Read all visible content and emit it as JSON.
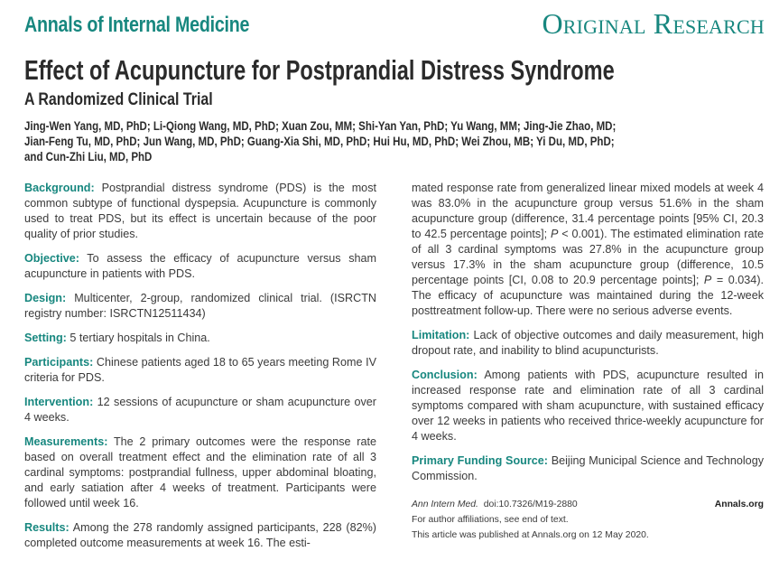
{
  "header": {
    "journal": "Annals of Internal Medicine",
    "section_type": "Original Research",
    "title": "Effect of Acupuncture for Postprandial Distress Syndrome",
    "subtitle": "A Randomized Clinical Trial",
    "authors_lines": [
      "Jing-Wen Yang, MD, PhD; Li-Qiong Wang, MD, PhD; Xuan Zou, MM; Shi-Yan Yan, PhD; Yu Wang, MM; Jing-Jie Zhao, MD;",
      "Jian-Feng Tu, MD, PhD; Jun Wang, MD, PhD; Guang-Xia Shi, MD, PhD; Hui Hu, MD, PhD; Wei Zhou, MB; Yi Du, MD, PhD;",
      "and Cun-Zhi Liu, MD, PhD"
    ]
  },
  "abstract": {
    "background": {
      "label": "Background:",
      "text": " Postprandial distress syndrome (PDS) is the most common subtype of functional dyspepsia. Acupuncture is com­monly used to treat PDS, but its effect is uncertain because of the poor quality of prior studies."
    },
    "objective": {
      "label": "Objective:",
      "text": " To assess the efficacy of acupuncture versus sham acupuncture in patients with PDS."
    },
    "design": {
      "label": "Design:",
      "text": " Multicenter, 2-group, randomized clinical trial. (ISRCTN registry number: ISRCTN12511434)"
    },
    "setting": {
      "label": "Setting:",
      "text": " 5 tertiary hospitals in China."
    },
    "participants": {
      "label": "Participants:",
      "text": " Chinese patients aged 18 to 65 years meeting Rome IV criteria for PDS."
    },
    "intervention": {
      "label": "Intervention:",
      "text": " 12 sessions of acupuncture or sham acupuncture over 4 weeks."
    },
    "measurements": {
      "label": "Measurements:",
      "text": " The 2 primary outcomes were the response rate based on overall treatment effect and the elimination rate of all 3 cardinal symptoms: postprandial fullness, upper abdominal bloating, and early satiation after 4 weeks of treatment. Partici­pants were followed until week 16."
    },
    "results": {
      "label": "Results:",
      "text_part1": " Among the 278 randomly assigned participants, 228 (82%) completed outcome measurements at week 16. The esti-",
      "text_part2a": "mated response rate from generalized linear mixed models at week 4 was 83.0% in the acupuncture group versus 51.6% in the sham acupuncture group (difference, 31.4 percentage points [95% CI, 20.3 to 42.5 percentage points]; ",
      "p1_label": "P",
      "text_part2b": " < 0.001). The esti­mated elimination rate of all 3 cardinal symptoms was 27.8% in the acupuncture group versus 17.3% in the sham acupuncture group (difference, 10.5 percentage points [CI, 0.08 to 20.9 per­centage points]; ",
      "p2_label": "P",
      "text_part2c": " = 0.034). The efficacy of acupuncture was maintained during the 12-week posttreatment follow-up. There were no serious adverse events."
    },
    "limitation": {
      "label": "Limitation:",
      "text": " Lack of objective outcomes and daily measurement, high dropout rate, and inability to blind acupuncturists."
    },
    "conclusion": {
      "label": "Conclusion:",
      "text": " Among patients with PDS, acupuncture resulted in increased response rate and elimination rate of all 3 cardinal symptoms compared with sham acupuncture, with sustained ef­ficacy over 12 weeks in patients who received thrice-weekly acu­puncture for 4 weeks."
    },
    "funding": {
      "label": "Primary Funding Source:",
      "text": " Beijing Municipal Science and Tech­nology Commission."
    }
  },
  "footer": {
    "journal_abbrev": "Ann Intern Med.",
    "doi": "  doi:10.7326/M19-2880",
    "site": "Annals.org",
    "affiliations_note": "For author affiliations, see end of text.",
    "published_note": "This article was published at Annals.org on 12 May 2020."
  },
  "colors": {
    "accent": "#17877f",
    "text": "#3a3a3a"
  }
}
